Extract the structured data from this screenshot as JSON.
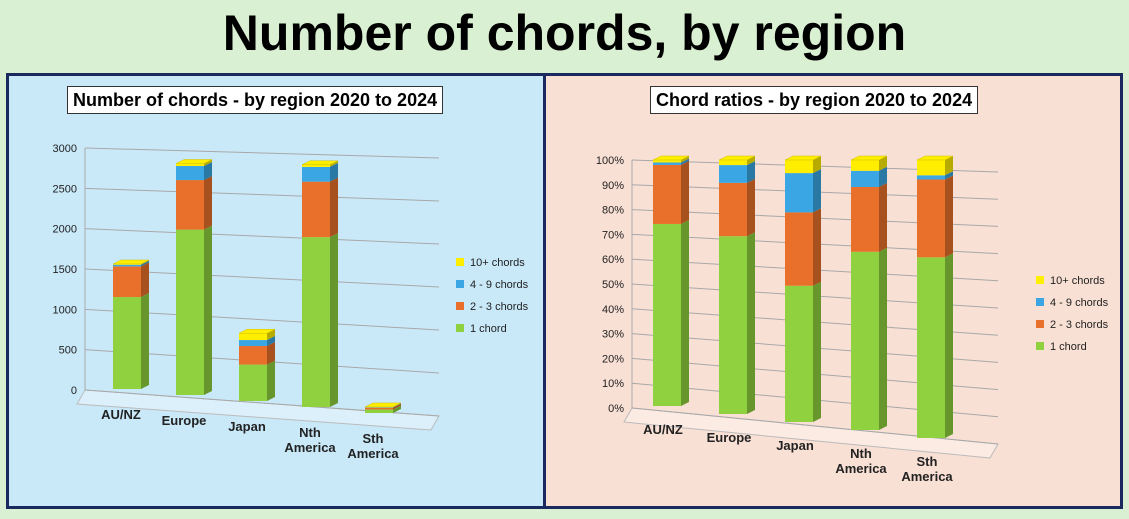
{
  "page": {
    "title": "Number of chords, by region"
  },
  "chart_data": [
    {
      "type": "bar",
      "stacked": true,
      "style": "3d",
      "title": "Number of chords - by region  2020 to 2024",
      "categories": [
        "AU/NZ",
        "Europe",
        "Japan",
        "Nth America",
        "Sth America"
      ],
      "series": [
        {
          "name": "1 chord",
          "color": "#8fd13f",
          "values": [
            1140,
            2000,
            430,
            1960,
            40
          ]
        },
        {
          "name": "2 - 3 chords",
          "color": "#e8702a",
          "values": [
            380,
            600,
            220,
            640,
            20
          ]
        },
        {
          "name": "4 - 9 chords",
          "color": "#3aa6e4",
          "values": [
            20,
            170,
            70,
            170,
            5
          ]
        },
        {
          "name": "10+ chords",
          "color": "#ffee00",
          "values": [
            10,
            30,
            80,
            25,
            3
          ]
        }
      ],
      "ylim": [
        0,
        3000
      ],
      "yticks": [
        "0",
        "500",
        "1000",
        "1500",
        "2000",
        "2500",
        "3000"
      ],
      "grid": true,
      "legend": "right"
    },
    {
      "type": "bar",
      "stacked": true,
      "style": "3d",
      "title": "Chord ratios - by region  2020 to 2024",
      "categories": [
        "AU/NZ",
        "Europe",
        "Japan",
        "Nth America",
        "Sth America"
      ],
      "series": [
        {
          "name": "1 chord",
          "color": "#8fd13f",
          "values": [
            74,
            70,
            52,
            66,
            65
          ]
        },
        {
          "name": "2 - 3 chords",
          "color": "#e8702a",
          "values": [
            24,
            21,
            28,
            24,
            28
          ]
        },
        {
          "name": "4 - 9 chords",
          "color": "#3aa6e4",
          "values": [
            1,
            7,
            15,
            6,
            1.5
          ]
        },
        {
          "name": "10+ chords",
          "color": "#ffee00",
          "values": [
            1,
            2,
            5,
            4,
            5.5
          ]
        }
      ],
      "ylim": [
        0,
        100
      ],
      "yticks": [
        "0%",
        "10%",
        "20%",
        "30%",
        "40%",
        "50%",
        "60%",
        "70%",
        "80%",
        "90%",
        "100%"
      ],
      "grid": true,
      "legend": "right"
    }
  ]
}
